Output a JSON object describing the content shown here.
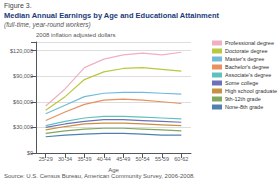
{
  "chart_data": {
    "type": "line",
    "title": "Median Annual Earnings by Age and Educational Attainment",
    "subtitle": "(full-time, year-round workers)",
    "annotations": [
      "Figure 3.",
      "2008 inflation adjusted dollars",
      "Source: U.S. Census Bureau, American Community Survey, 2006-2008."
    ],
    "xlabel": "Age",
    "categories": [
      "25-29",
      "30-34",
      "35-39",
      "40-44",
      "45-49",
      "50-54",
      "55-59",
      "60-62"
    ],
    "series": [
      {
        "name": "Professional degree",
        "color": "#f0b0c0",
        "values": [
          55000,
          75000,
          100000,
          110000,
          115000,
          117000,
          115000,
          118000
        ]
      },
      {
        "name": "Doctorate degree",
        "color": "#b8c840",
        "values": [
          50000,
          66000,
          86000,
          95000,
          99000,
          100000,
          98000,
          96000
        ]
      },
      {
        "name": "Master's degree",
        "color": "#70bcd8",
        "values": [
          46000,
          56000,
          66000,
          70000,
          71000,
          71000,
          70000,
          69000
        ]
      },
      {
        "name": "Bachelor's degree",
        "color": "#e89060",
        "values": [
          38000,
          48000,
          57000,
          62000,
          63000,
          62000,
          60000,
          58000
        ]
      },
      {
        "name": "Associate's degree",
        "color": "#60c0c0",
        "values": [
          32000,
          37000,
          41000,
          43000,
          43000,
          42000,
          41000,
          40000
        ]
      },
      {
        "name": "Some college",
        "color": "#7070b8",
        "values": [
          30000,
          34000,
          37000,
          39000,
          39000,
          38000,
          37000,
          36000
        ]
      },
      {
        "name": "High school graduate",
        "color": "#c89040",
        "values": [
          27000,
          31000,
          34000,
          35000,
          35000,
          34000,
          33000,
          32000
        ]
      },
      {
        "name": "9th-12th grade",
        "color": "#80a860",
        "values": [
          23000,
          26000,
          28000,
          29000,
          29000,
          28000,
          27000,
          26000
        ]
      },
      {
        "name": "None-8th grade",
        "color": "#5080b0",
        "values": [
          19000,
          21000,
          22000,
          23000,
          23000,
          22000,
          21000,
          21000
        ]
      }
    ],
    "ylim": [
      0,
      130000
    ],
    "yticks": [
      {
        "value": 0,
        "label": "$0"
      },
      {
        "value": 30000,
        "label": "$30,000"
      },
      {
        "value": 60000,
        "label": "$60,000"
      },
      {
        "value": 90000,
        "label": "$90,000"
      },
      {
        "value": 120000,
        "label": "$120,000"
      }
    ],
    "grid": true,
    "legend": "right"
  }
}
